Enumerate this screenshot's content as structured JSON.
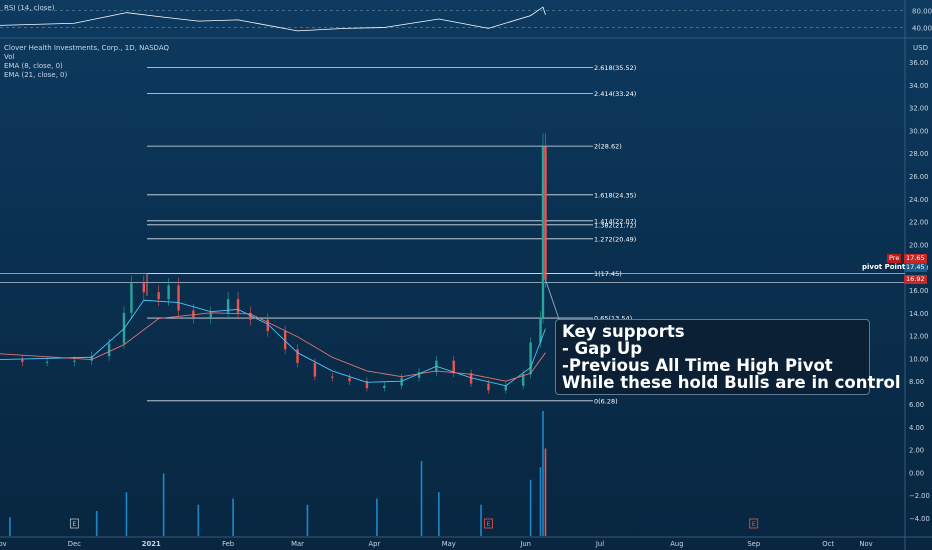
{
  "header": {
    "rsi_label": "RSI (14, close)",
    "symbol_title": "Clover Health Investments, Corp., 1D, NASDAQ",
    "vol_label": "Vol",
    "ema8_label": "EMA (8, close, 0)",
    "ema21_label": "EMA (21, close, 0)",
    "currency": "USD"
  },
  "callout": {
    "lines": [
      "Key supports",
      "- Gap Up",
      "-Previous All Time High Pivot",
      "While these hold Bulls are in control"
    ]
  },
  "pivot_label": "pivot Point",
  "price_tags": {
    "pre_label": "Pre",
    "pre_value": "17.65",
    "last_value": "17.45",
    "current_value": "16.92"
  },
  "colors": {
    "background": "#0a3050",
    "up": "#26a69a",
    "down": "#ef5350",
    "ema8": "#4fc3f7",
    "ema21": "#e57373",
    "fib": "#d9e3ec",
    "volume": "#1e88c7",
    "rsi": "#ffffff"
  },
  "chart_data": {
    "type": "candlestick",
    "y_axis_ticks": [
      "36.00",
      "34.00",
      "32.00",
      "30.00",
      "28.00",
      "26.00",
      "24.00",
      "22.00",
      "20.00",
      "18.00",
      "16.00",
      "14.00",
      "12.00",
      "10.00",
      "8.00",
      "6.00",
      "4.00",
      "2.00",
      "0.00",
      "−2.00",
      "−4.00"
    ],
    "ylim": [
      -5,
      37
    ],
    "rsi_ticks": [
      "80.00",
      "40.00"
    ],
    "x_axis_ticks": [
      "Nov",
      "Dec",
      "2021",
      "Feb",
      "Mar",
      "Apr",
      "May",
      "Jun",
      "Jul",
      "Aug",
      "Sep",
      "Oct",
      "Nov"
    ],
    "x_start": "2020-11-01",
    "x_end": "2021-11-01",
    "fib_levels": [
      {
        "ratio": "2.618",
        "price": 35.52,
        "label": "2.618(35.52)"
      },
      {
        "ratio": "2.414",
        "price": 33.24,
        "label": "2.414(33.24)"
      },
      {
        "ratio": "2",
        "price": 28.62,
        "label": "2(28.62)"
      },
      {
        "ratio": "1.618",
        "price": 24.35,
        "label": "1.618(24.35)"
      },
      {
        "ratio": "1.414",
        "price": 22.07,
        "label": "1.414(22.07)"
      },
      {
        "ratio": "1.382",
        "price": 21.72,
        "label": "1.382(21.72)"
      },
      {
        "ratio": "1.272",
        "price": 20.49,
        "label": "1.272(20.49)"
      },
      {
        "ratio": "1",
        "price": 17.45,
        "label": "1(17.45)"
      },
      {
        "ratio": "0.65",
        "price": 13.54,
        "label": "0.65(13.54)"
      },
      {
        "ratio": "0",
        "price": 6.28,
        "label": "0(6.28)"
      }
    ],
    "earnings_markers": [
      {
        "date": "2020-12-01",
        "label": "E"
      },
      {
        "date": "2021-05-17",
        "label": "E"
      },
      {
        "date": "2021-09-01",
        "label": "E"
      }
    ],
    "pivot_price": 17.0,
    "price_series": [
      {
        "date": "2020-11-01",
        "close": 9.9
      },
      {
        "date": "2020-11-10",
        "close": 9.7
      },
      {
        "date": "2020-11-20",
        "close": 9.7
      },
      {
        "date": "2020-12-01",
        "close": 9.8
      },
      {
        "date": "2020-12-08",
        "close": 10.2
      },
      {
        "date": "2020-12-15",
        "close": 11.3
      },
      {
        "date": "2020-12-21",
        "close": 14.0
      },
      {
        "date": "2020-12-24",
        "close": 16.6
      },
      {
        "date": "2020-12-29",
        "close": 15.8
      },
      {
        "date": "2021-01-04",
        "close": 15.2
      },
      {
        "date": "2021-01-08",
        "close": 16.4
      },
      {
        "date": "2021-01-12",
        "close": 14.2
      },
      {
        "date": "2021-01-18",
        "close": 13.6
      },
      {
        "date": "2021-01-25",
        "close": 14.0
      },
      {
        "date": "2021-02-01",
        "close": 15.2
      },
      {
        "date": "2021-02-05",
        "close": 14.0
      },
      {
        "date": "2021-02-10",
        "close": 13.4
      },
      {
        "date": "2021-02-17",
        "close": 12.4
      },
      {
        "date": "2021-02-24",
        "close": 10.8
      },
      {
        "date": "2021-03-01",
        "close": 9.6
      },
      {
        "date": "2021-03-08",
        "close": 8.4
      },
      {
        "date": "2021-03-15",
        "close": 8.3
      },
      {
        "date": "2021-03-22",
        "close": 8.0
      },
      {
        "date": "2021-03-29",
        "close": 7.4
      },
      {
        "date": "2021-04-05",
        "close": 7.6
      },
      {
        "date": "2021-04-12",
        "close": 8.3
      },
      {
        "date": "2021-04-19",
        "close": 8.8
      },
      {
        "date": "2021-04-26",
        "close": 9.8
      },
      {
        "date": "2021-05-03",
        "close": 8.7
      },
      {
        "date": "2021-05-10",
        "close": 7.8
      },
      {
        "date": "2021-05-17",
        "close": 7.2
      },
      {
        "date": "2021-05-24",
        "close": 7.6
      },
      {
        "date": "2021-05-31",
        "close": 8.6
      },
      {
        "date": "2021-06-03",
        "close": 11.4
      },
      {
        "date": "2021-06-07",
        "close": 13.6
      },
      {
        "date": "2021-06-08",
        "close": 28.6
      },
      {
        "date": "2021-06-09",
        "close": 16.9
      }
    ],
    "ema8_series": [
      {
        "date": "2020-11-01",
        "value": 9.9
      },
      {
        "date": "2020-12-08",
        "value": 10.1
      },
      {
        "date": "2020-12-21",
        "value": 12.6
      },
      {
        "date": "2020-12-29",
        "value": 15.1
      },
      {
        "date": "2021-01-12",
        "value": 14.9
      },
      {
        "date": "2021-01-25",
        "value": 14.1
      },
      {
        "date": "2021-02-05",
        "value": 14.3
      },
      {
        "date": "2021-02-17",
        "value": 13.0
      },
      {
        "date": "2021-03-01",
        "value": 10.5
      },
      {
        "date": "2021-03-15",
        "value": 8.9
      },
      {
        "date": "2021-03-29",
        "value": 7.9
      },
      {
        "date": "2021-04-12",
        "value": 8.0
      },
      {
        "date": "2021-04-26",
        "value": 9.3
      },
      {
        "date": "2021-05-10",
        "value": 8.3
      },
      {
        "date": "2021-05-24",
        "value": 7.6
      },
      {
        "date": "2021-06-03",
        "value": 9.2
      },
      {
        "date": "2021-06-09",
        "value": 12.6
      }
    ],
    "ema21_series": [
      {
        "date": "2020-11-01",
        "value": 10.4
      },
      {
        "date": "2020-12-08",
        "value": 9.9
      },
      {
        "date": "2020-12-21",
        "value": 11.2
      },
      {
        "date": "2021-01-04",
        "value": 13.5
      },
      {
        "date": "2021-01-25",
        "value": 14.0
      },
      {
        "date": "2021-02-10",
        "value": 13.9
      },
      {
        "date": "2021-03-01",
        "value": 11.9
      },
      {
        "date": "2021-03-15",
        "value": 10.1
      },
      {
        "date": "2021-03-29",
        "value": 8.9
      },
      {
        "date": "2021-04-12",
        "value": 8.4
      },
      {
        "date": "2021-04-26",
        "value": 8.9
      },
      {
        "date": "2021-05-10",
        "value": 8.6
      },
      {
        "date": "2021-05-24",
        "value": 8.0
      },
      {
        "date": "2021-06-03",
        "value": 8.7
      },
      {
        "date": "2021-06-09",
        "value": 10.5
      }
    ],
    "volume_series": [
      {
        "date": "2020-11-05",
        "value": 0.15
      },
      {
        "date": "2020-12-10",
        "value": 0.2
      },
      {
        "date": "2020-12-22",
        "value": 0.35
      },
      {
        "date": "2021-01-06",
        "value": 0.5
      },
      {
        "date": "2021-01-20",
        "value": 0.25
      },
      {
        "date": "2021-02-03",
        "value": 0.3
      },
      {
        "date": "2021-03-05",
        "value": 0.25
      },
      {
        "date": "2021-04-02",
        "value": 0.3
      },
      {
        "date": "2021-04-20",
        "value": 0.6
      },
      {
        "date": "2021-04-27",
        "value": 0.35
      },
      {
        "date": "2021-05-14",
        "value": 0.25
      },
      {
        "date": "2021-06-03",
        "value": 0.45
      },
      {
        "date": "2021-06-07",
        "value": 0.55
      },
      {
        "date": "2021-06-08",
        "value": 1.0
      },
      {
        "date": "2021-06-09",
        "value": 0.7
      }
    ],
    "rsi_series": [
      {
        "date": "2020-11-01",
        "value": 45
      },
      {
        "date": "2020-12-01",
        "value": 50
      },
      {
        "date": "2020-12-22",
        "value": 75
      },
      {
        "date": "2021-01-05",
        "value": 65
      },
      {
        "date": "2021-01-20",
        "value": 55
      },
      {
        "date": "2021-02-05",
        "value": 58
      },
      {
        "date": "2021-03-01",
        "value": 32
      },
      {
        "date": "2021-03-20",
        "value": 38
      },
      {
        "date": "2021-04-05",
        "value": 40
      },
      {
        "date": "2021-04-27",
        "value": 60
      },
      {
        "date": "2021-05-17",
        "value": 38
      },
      {
        "date": "2021-06-03",
        "value": 68
      },
      {
        "date": "2021-06-08",
        "value": 88
      },
      {
        "date": "2021-06-09",
        "value": 70
      }
    ]
  }
}
